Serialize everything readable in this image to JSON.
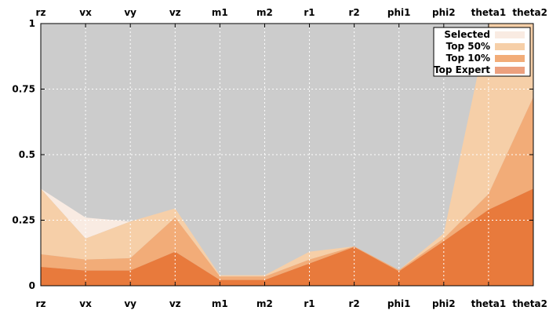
{
  "chart_data": {
    "type": "area",
    "categories": [
      "rz",
      "vx",
      "vy",
      "vz",
      "m1",
      "m2",
      "r1",
      "r2",
      "phi1",
      "phi2",
      "theta1",
      "theta2"
    ],
    "y_ticks": [
      "0",
      "0.25",
      "0.5",
      "0.75",
      "1"
    ],
    "ylim": [
      0,
      1
    ],
    "grid": true,
    "legend_position": "top-right",
    "background_area": {
      "upper": 1,
      "lower": 0,
      "color": "#cccccc"
    },
    "series": [
      {
        "name": "Selected",
        "color": "#f9ebe2",
        "upper": [
          0.37,
          0.26,
          0.245,
          0.295,
          0.04,
          0.04,
          0.13,
          0.15,
          0.06,
          0.2,
          1.0,
          1.0
        ],
        "lower": [
          0.37,
          0.18,
          0.245,
          0.295,
          0.04,
          0.04,
          0.13,
          0.15,
          0.06,
          0.2,
          1.0,
          1.0
        ]
      },
      {
        "name": "Top 50%",
        "color": "#f6cfa8",
        "upper": [
          0.37,
          0.18,
          0.245,
          0.295,
          0.04,
          0.04,
          0.13,
          0.15,
          0.06,
          0.2,
          1.0,
          1.0
        ],
        "lower": [
          0.12,
          0.1,
          0.105,
          0.26,
          0.035,
          0.035,
          0.1,
          0.15,
          0.06,
          0.18,
          0.35,
          0.72
        ]
      },
      {
        "name": "Top 10%",
        "color": "#f2ac78",
        "upper": [
          0.12,
          0.1,
          0.105,
          0.26,
          0.035,
          0.035,
          0.1,
          0.15,
          0.06,
          0.18,
          0.35,
          0.72
        ],
        "lower": [
          0.072,
          0.058,
          0.058,
          0.13,
          0.022,
          0.022,
          0.085,
          0.148,
          0.055,
          0.17,
          0.29,
          0.37
        ]
      },
      {
        "name": "Top Expert",
        "color": "#e87a3c",
        "upper": [
          0.072,
          0.058,
          0.058,
          0.13,
          0.022,
          0.022,
          0.085,
          0.148,
          0.055,
          0.17,
          0.29,
          0.37
        ],
        "lower": [
          0,
          0,
          0,
          0,
          0,
          0,
          0,
          0,
          0,
          0,
          0,
          0
        ]
      }
    ],
    "legend": [
      {
        "label": "Selected",
        "color": "#f9ebe2"
      },
      {
        "label": "Top 50%",
        "color": "#f6cfa8"
      },
      {
        "label": "Top 10%",
        "color": "#f2ac78"
      },
      {
        "label": "Top Expert",
        "color": "#eca07e"
      }
    ]
  }
}
